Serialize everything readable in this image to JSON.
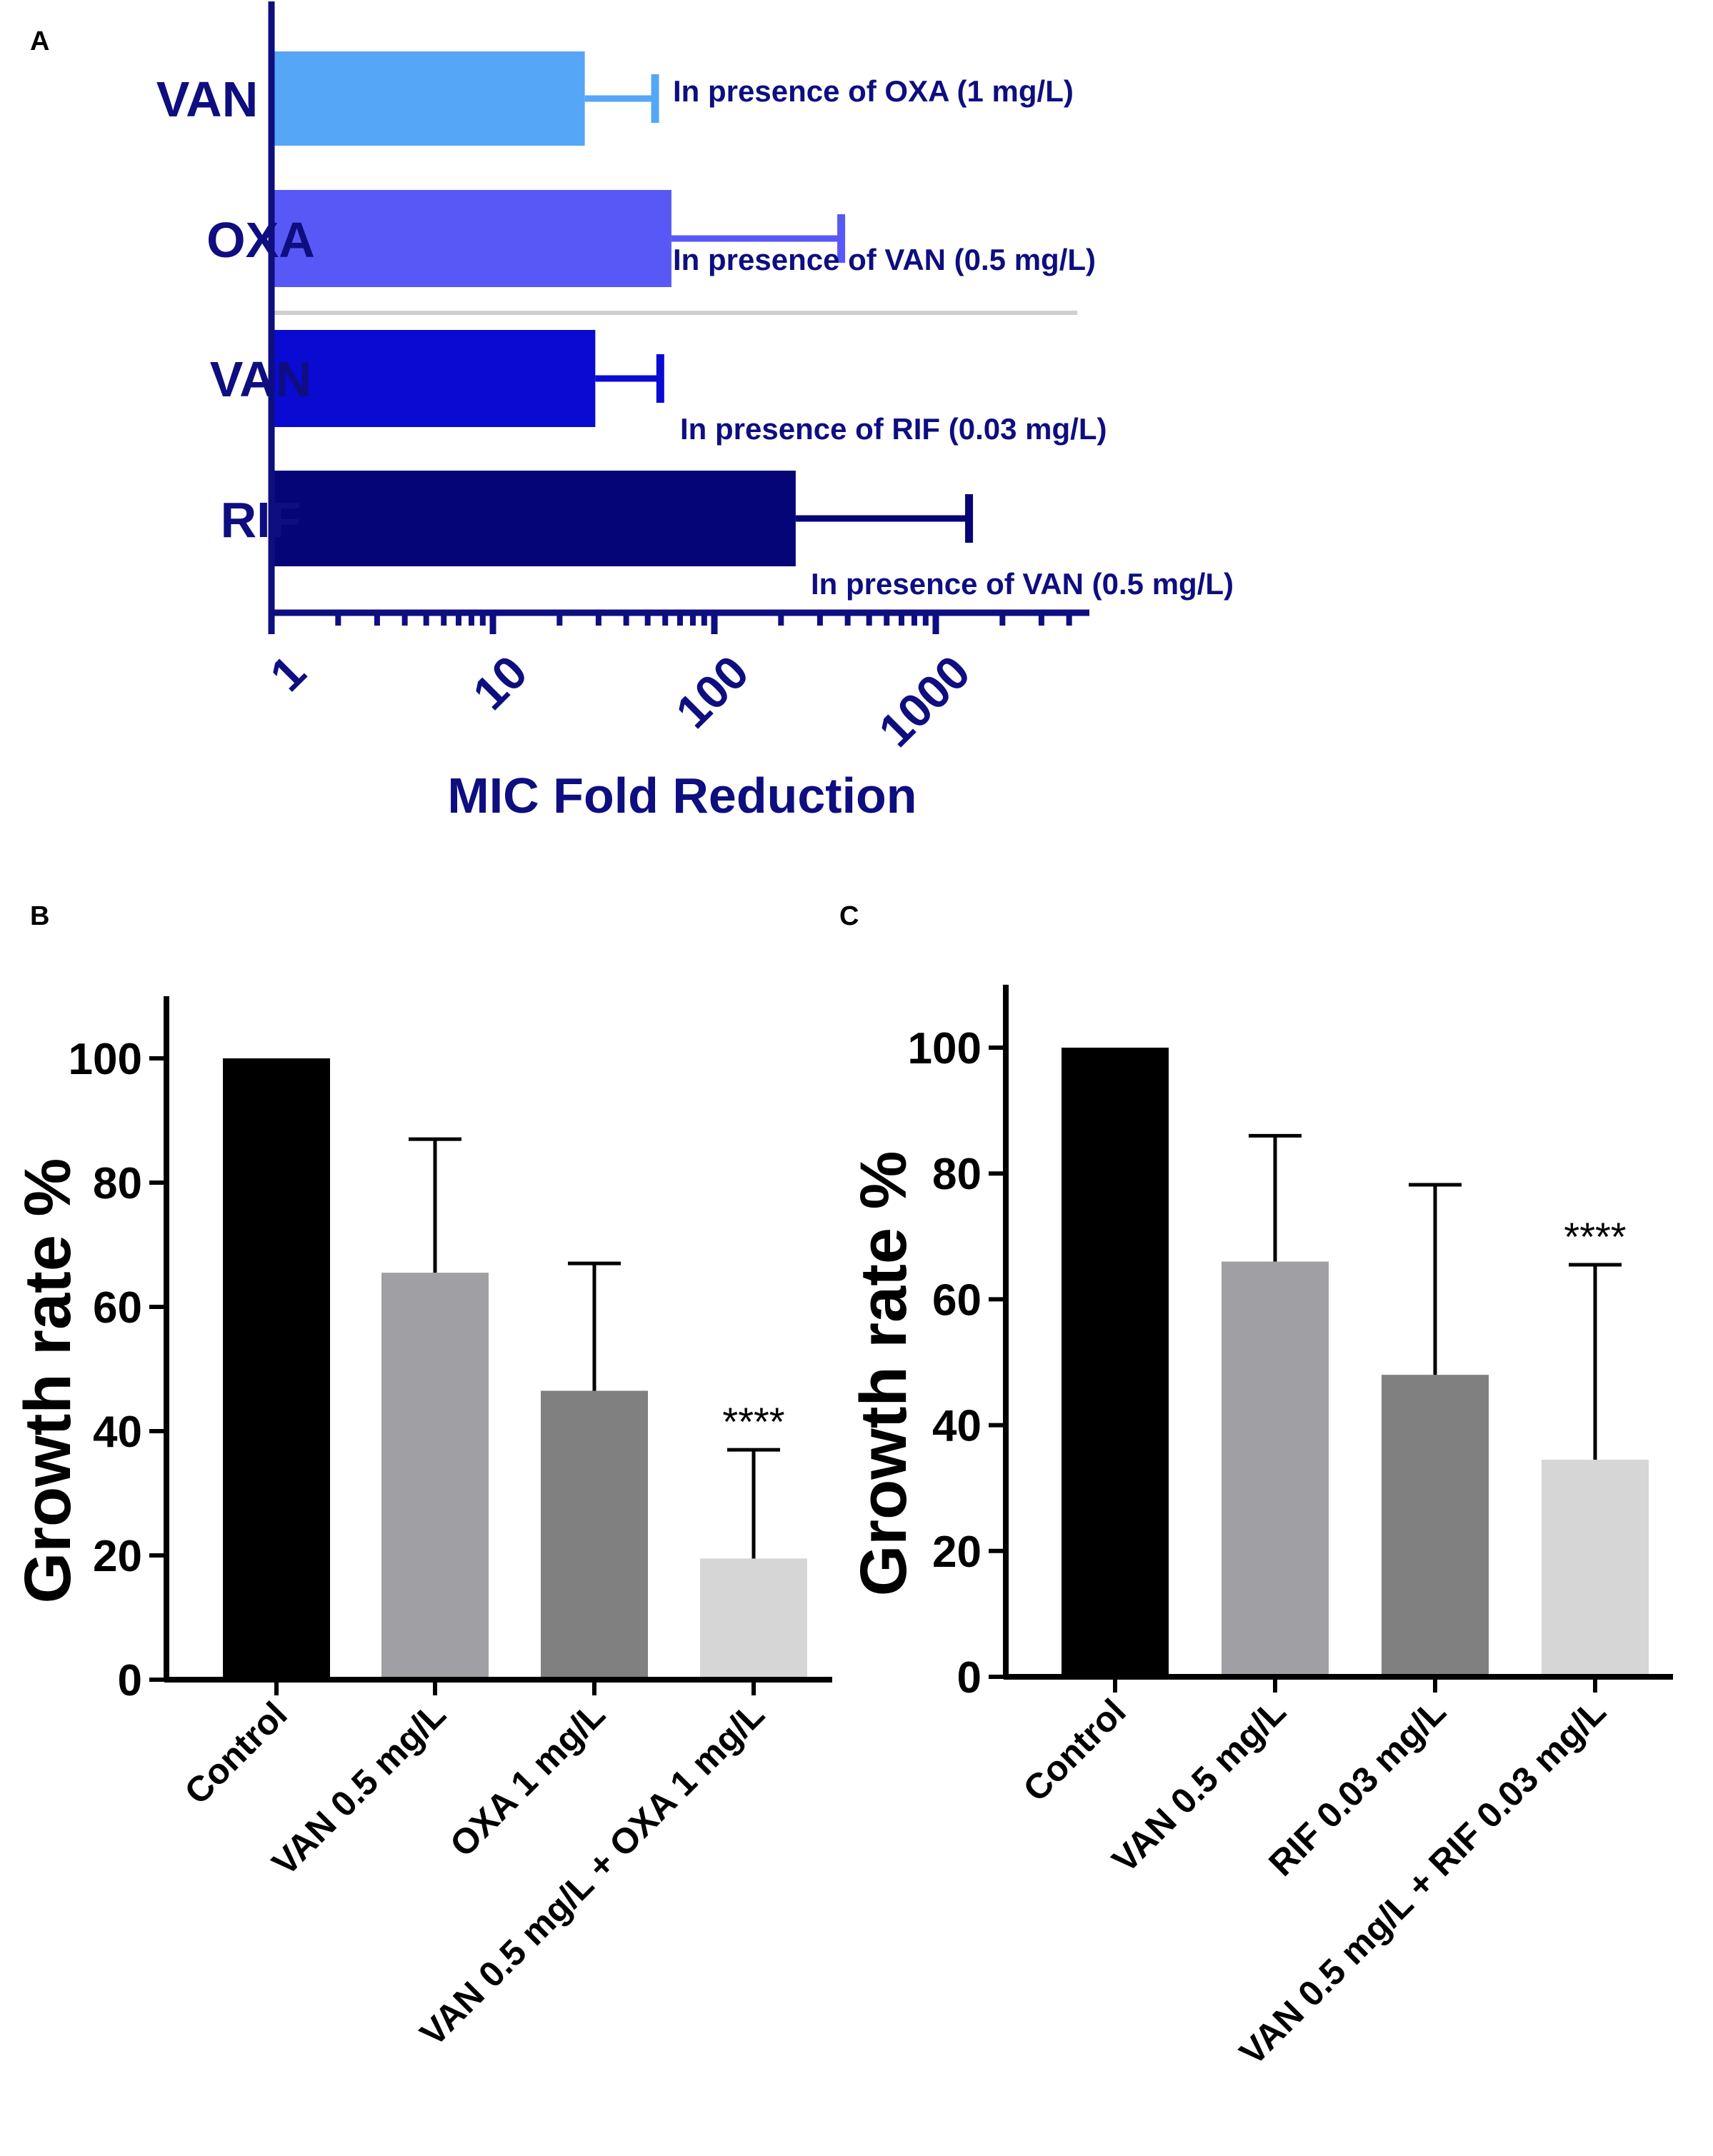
{
  "chart_data": [
    {
      "panel": "A",
      "type": "bar",
      "orientation": "horizontal",
      "xscale": "log",
      "xlim": [
        1,
        5000
      ],
      "xticks": [
        1,
        10,
        100,
        1000
      ],
      "xtick_labels": [
        "1",
        "10",
        "100",
        "1000"
      ],
      "xlabel": "MIC Fold Reduction",
      "categories": [
        "VAN",
        "OXA",
        "VAN",
        "RIF"
      ],
      "values": [
        26,
        64,
        29,
        233
      ],
      "errors": [
        28,
        310,
        28,
        1180
      ],
      "annotations": [
        "In presence of OXA (1 mg/L)",
        "In presence of VAN (0.5 mg/L)",
        "In presence of RIF (0.03 mg/L)",
        "In presence of VAN (0.5 mg/L)"
      ],
      "colors": [
        "#55a6f6",
        "#5858f7",
        "#0a0ad2",
        "#050577"
      ],
      "axis_color": "#0e0e80",
      "divider_color": "#cfcfcf"
    },
    {
      "panel": "B",
      "type": "bar",
      "ylabel": "Growth rate %",
      "ylim": [
        0,
        110
      ],
      "yticks": [
        0,
        20,
        40,
        60,
        80,
        100
      ],
      "categories": [
        "Control",
        "VAN 0.5 mg/L",
        "OXA 1 mg/L",
        "VAN 0.5 mg/L + OXA 1 mg/L"
      ],
      "values": [
        100,
        65.5,
        46.5,
        19.5
      ],
      "errors": [
        0,
        21.5,
        20.5,
        17.5
      ],
      "significance": [
        "",
        "",
        "",
        "****"
      ],
      "colors": [
        "#000000",
        "#a0a0a4",
        "#808080",
        "#d6d6d6"
      ]
    },
    {
      "panel": "C",
      "type": "bar",
      "ylabel": "Growth rate %",
      "ylim": [
        0,
        110
      ],
      "yticks": [
        0,
        20,
        40,
        60,
        80,
        100
      ],
      "categories": [
        "Control",
        "VAN 0.5 mg/L",
        "RIF 0.03 mg/L",
        "VAN 0.5 mg/L + RIF 0.03 mg/L"
      ],
      "values": [
        100,
        66,
        48,
        34.5
      ],
      "errors": [
        0,
        20,
        30.2,
        31
      ],
      "significance": [
        "",
        "",
        "",
        "****"
      ],
      "colors": [
        "#000000",
        "#a0a0a4",
        "#808080",
        "#d6d6d6"
      ]
    }
  ]
}
